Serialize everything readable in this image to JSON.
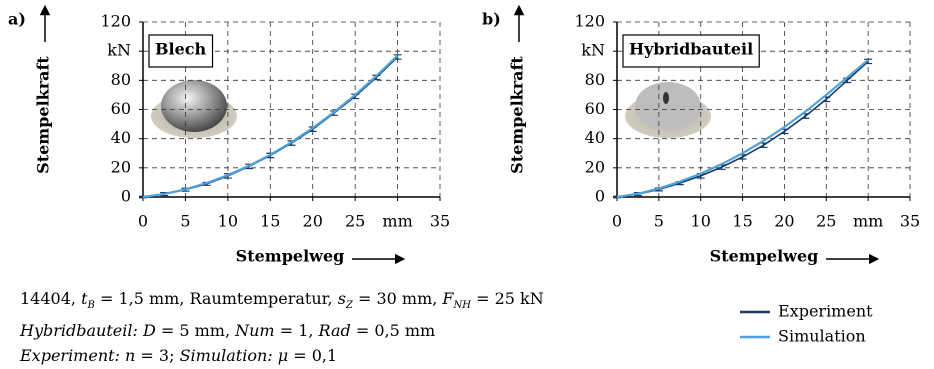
{
  "chart_data": [
    {
      "type": "line",
      "panel": "a)",
      "title": "Blech",
      "xlabel": "Stempelweg",
      "ylabel": "Stempelkraft",
      "xlim": [
        0,
        35
      ],
      "ylim": [
        0,
        120
      ],
      "xticks": [
        0,
        5,
        10,
        15,
        20,
        25,
        {
          "value": 30,
          "label": "mm"
        },
        35
      ],
      "yticks": [
        0,
        20,
        40,
        60,
        80,
        {
          "value": 100,
          "label": "kN"
        },
        120
      ],
      "grid": true,
      "series": [
        {
          "name": "Experiment",
          "color": "#1b3a63",
          "x": [
            0,
            2.5,
            5,
            7.5,
            10,
            12.5,
            15,
            17.5,
            20,
            22.5,
            25,
            27.5,
            30
          ],
          "values": [
            0,
            2,
            5,
            9,
            14.5,
            21,
            28.5,
            37,
            46.5,
            57.5,
            69,
            82,
            96
          ],
          "errors": [
            0.5,
            1,
            1,
            1,
            1.5,
            1.5,
            1.5,
            1.5,
            1.5,
            1.5,
            1.5,
            1.5,
            1.5
          ]
        },
        {
          "name": "Simulation",
          "color": "#4fa3dd",
          "x": [
            0,
            2.5,
            5,
            7.5,
            10,
            12.5,
            15,
            17.5,
            20,
            22.5,
            25,
            27.5,
            30
          ],
          "values": [
            0,
            2.1,
            5.3,
            9.6,
            15,
            21.4,
            29,
            37.6,
            47.3,
            58.1,
            70,
            83,
            97
          ]
        }
      ]
    },
    {
      "type": "line",
      "panel": "b)",
      "title": "Hybridbauteil",
      "xlabel": "Stempelweg",
      "ylabel": "Stempelkraft",
      "xlim": [
        0,
        35
      ],
      "ylim": [
        0,
        120
      ],
      "xticks": [
        0,
        5,
        10,
        15,
        20,
        25,
        {
          "value": 30,
          "label": "mm"
        },
        35
      ],
      "yticks": [
        0,
        20,
        40,
        60,
        80,
        {
          "value": 100,
          "label": "kN"
        },
        120
      ],
      "grid": true,
      "series": [
        {
          "name": "Experiment",
          "color": "#1b3a63",
          "x": [
            0,
            2.5,
            5,
            7.5,
            10,
            12.5,
            15,
            17.5,
            20,
            22.5,
            25,
            27.5,
            30
          ],
          "values": [
            0,
            2,
            5.2,
            9.5,
            14.5,
            20.5,
            27.5,
            35.5,
            45,
            55.5,
            67,
            80,
            93
          ],
          "errors": [
            0.5,
            1,
            1,
            1,
            1.5,
            1.5,
            1.5,
            1.5,
            1.5,
            1.5,
            1.5,
            1.5,
            1.5
          ]
        },
        {
          "name": "Simulation",
          "color": "#4fa3dd",
          "x": [
            0,
            2.5,
            5,
            7.5,
            10,
            12.5,
            15,
            17.5,
            20,
            22.5,
            25,
            27.5,
            30
          ],
          "values": [
            0,
            2.3,
            5.8,
            10.5,
            16,
            22.5,
            30,
            38.5,
            48,
            58.5,
            70,
            82,
            94
          ]
        }
      ]
    }
  ],
  "notes": [
    [
      "14404, ",
      "t",
      "B",
      " = 1,5 mm, Raumtemperatur, ",
      "s",
      "Z",
      " = 30 mm, ",
      "F",
      "NH",
      " = 25 kN"
    ],
    [
      "Hybridbauteil: D",
      " = 5 mm, ",
      "Num",
      " = 1, ",
      "Rad",
      " = 0,5 mm"
    ],
    [
      "Experiment: n",
      " = 3; ",
      "Simulation: μ",
      " = 0,1"
    ]
  ]
}
